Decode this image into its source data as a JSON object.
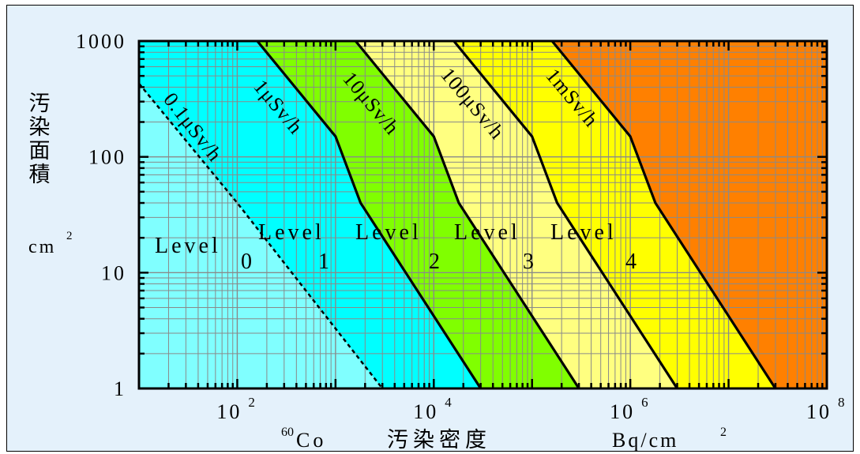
{
  "chart_data": {
    "type": "area",
    "x_scale": "log",
    "y_scale": "log",
    "xlim": [
      10,
      100000000
    ],
    "ylim": [
      1,
      1000
    ],
    "grid": true,
    "x_ticks": [
      {
        "value": 100,
        "base": "10",
        "exp": "2"
      },
      {
        "value": 10000,
        "base": "10",
        "exp": "4"
      },
      {
        "value": 1000000,
        "base": "10",
        "exp": "6"
      },
      {
        "value": 100000000,
        "base": "10",
        "exp": "8"
      }
    ],
    "y_ticks": [
      {
        "value": 1,
        "label": "1"
      },
      {
        "value": 10,
        "label": "10"
      },
      {
        "value": 100,
        "label": "100"
      },
      {
        "value": 1000,
        "label": "1000"
      }
    ],
    "xlabel": {
      "isotope_mass": "60",
      "isotope": "Co",
      "text": "汚染密度",
      "unit_base": "Bq/cm",
      "unit_exp": "2"
    },
    "ylabel": {
      "text": "汚染面積",
      "unit_base": "cm",
      "unit_exp": "2"
    },
    "series": [
      {
        "name": "0.1μSv/h",
        "style": "dashed",
        "points": [
          [
            10,
            430
          ],
          [
            100,
            40
          ],
          [
            3000,
            1
          ]
        ]
      },
      {
        "name": "1μSv/h",
        "style": "solid",
        "points": [
          [
            160,
            1000
          ],
          [
            1000,
            150
          ],
          [
            1800,
            40
          ],
          [
            30000,
            1
          ]
        ]
      },
      {
        "name": "10μSv/h",
        "style": "solid",
        "points": [
          [
            1600,
            1000
          ],
          [
            10000,
            150
          ],
          [
            18000,
            40
          ],
          [
            300000,
            1
          ]
        ]
      },
      {
        "name": "100μSv/h",
        "style": "solid",
        "points": [
          [
            16000,
            1000
          ],
          [
            100000,
            150
          ],
          [
            180000,
            40
          ],
          [
            3000000,
            1
          ]
        ]
      },
      {
        "name": "1mSv/h",
        "style": "solid",
        "points": [
          [
            160000,
            1000
          ],
          [
            1000000,
            150
          ],
          [
            1800000,
            40
          ],
          [
            30000000,
            1
          ]
        ]
      }
    ],
    "bands": [
      {
        "level": "0",
        "color": "#00ffff"
      },
      {
        "level": "1",
        "color": "#80ff00"
      },
      {
        "level": "2",
        "color": "#ffff80"
      },
      {
        "level": "3",
        "color": "#ffff00"
      },
      {
        "level": "4",
        "color": "#ff8000"
      }
    ],
    "band_below_dashed_color": "#80ffff",
    "levels": [
      {
        "word": "Level",
        "num": "0"
      },
      {
        "word": "Level",
        "num": "1"
      },
      {
        "word": "Level",
        "num": "2"
      },
      {
        "word": "Level",
        "num": "3"
      },
      {
        "word": "Level",
        "num": "4"
      }
    ]
  }
}
